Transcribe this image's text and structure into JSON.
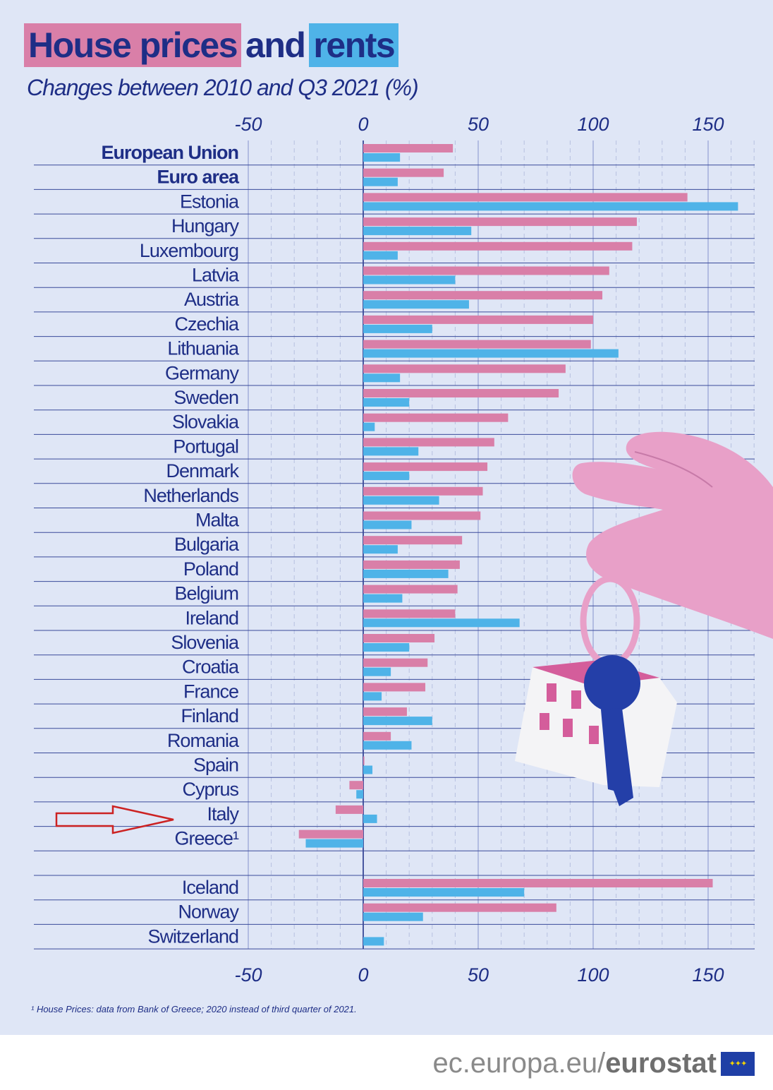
{
  "title": {
    "part1": "House prices",
    "part2": "and",
    "part3": "rents"
  },
  "subtitle": "Changes between 2010 and Q3 2021 (%)",
  "colors": {
    "house_prices": "#d97fa8",
    "rents": "#4fb3e8",
    "text": "#1e2e86",
    "background": "#dfe6f6"
  },
  "footnote": "¹ House Prices: data from Bank of Greece; 2020 instead of third quarter of 2021.",
  "brand": {
    "prefix": "ec.europa.eu/",
    "bold": "eurostat",
    "flag_icon": "eu-flag-icon"
  },
  "annotation": {
    "type": "arrow",
    "color": "#cc2222",
    "points_to": "Italy",
    "icon": "arrow-right-icon"
  },
  "chart_data": {
    "type": "bar",
    "orientation": "horizontal",
    "xlim": [
      -50,
      170
    ],
    "xticks": [
      -50,
      0,
      50,
      100,
      150
    ],
    "grid": true,
    "legend": "none",
    "categories": [
      "European Union",
      "Euro area",
      "Estonia",
      "Hungary",
      "Luxembourg",
      "Latvia",
      "Austria",
      "Czechia",
      "Lithuania",
      "Germany",
      "Sweden",
      "Slovakia",
      "Portugal",
      "Denmark",
      "Netherlands",
      "Malta",
      "Bulgaria",
      "Poland",
      "Belgium",
      "Ireland",
      "Slovenia",
      "Croatia",
      "France",
      "Finland",
      "Romania",
      "Spain",
      "Cyprus",
      "Italy",
      "Greece¹",
      "",
      "Iceland",
      "Norway",
      "Switzerland"
    ],
    "bold_categories": [
      "European Union",
      "Euro area"
    ],
    "series": [
      {
        "name": "House prices",
        "color": "#d97fa8",
        "values": [
          39,
          35,
          141,
          119,
          117,
          107,
          104,
          100,
          99,
          88,
          85,
          63,
          57,
          54,
          52,
          51,
          43,
          42,
          41,
          40,
          31,
          28,
          27,
          19,
          12,
          0.5,
          -6,
          -12,
          -28,
          null,
          152,
          84,
          null
        ]
      },
      {
        "name": "Rents",
        "color": "#4fb3e8",
        "values": [
          16,
          15,
          163,
          47,
          15,
          40,
          46,
          30,
          111,
          16,
          20,
          5,
          24,
          20,
          33,
          21,
          15,
          37,
          17,
          68,
          20,
          12,
          8,
          30,
          21,
          4,
          -3,
          6,
          -25,
          null,
          70,
          26,
          9
        ]
      }
    ]
  }
}
